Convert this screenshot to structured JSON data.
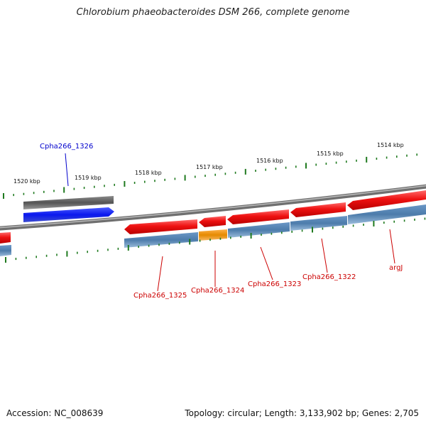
{
  "title": "Chlorobium phaeobacteroides DSM 266, complete genome",
  "footer": {
    "accession": "Accession: NC_008639",
    "topology": "Topology: circular; Length: 3,133,902 bp; Genes: 2,705"
  },
  "colors": {
    "backbone": "#888888",
    "forward_cds": "#ee1111",
    "gene_track": "#4f7fb0",
    "rna_track": "#e58a00",
    "upper_gene_track": "#555555",
    "upper_forward_cds": "#0a18ee",
    "tick": "#1f7a1f",
    "label_red": "#cc0000",
    "label_blue": "#0000cc"
  },
  "kbp_labels": [
    "1520 kbp",
    "1519 kbp",
    "1518 kbp",
    "1517 kbp",
    "1516 kbp",
    "1515 kbp",
    "1514 kbp"
  ],
  "gene_labels": [
    {
      "id": "cpha266-1326",
      "text": "Cpha266_1326",
      "color": "blue"
    },
    {
      "id": "cpha266-1325",
      "text": "Cpha266_1325",
      "color": "red"
    },
    {
      "id": "cpha266-1324",
      "text": "Cpha266_1324",
      "color": "red"
    },
    {
      "id": "cpha266-1323",
      "text": "Cpha266_1323",
      "color": "red"
    },
    {
      "id": "cpha266-1322",
      "text": "Cpha266_1322",
      "color": "red"
    },
    {
      "id": "argj",
      "text": "argJ",
      "color": "red"
    }
  ]
}
